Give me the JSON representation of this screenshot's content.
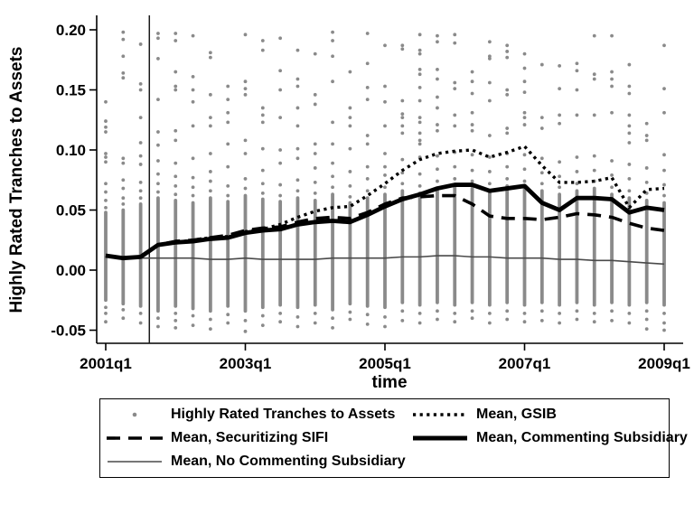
{
  "figure": {
    "background": "#ffffff",
    "scatter_color": "#8a8a8a",
    "line_color": "#000000",
    "thin_line_color": "#4a4a4a"
  },
  "legend": {
    "items": [
      {
        "label": "Highly Rated Tranches to Assets",
        "marker": "dot"
      },
      {
        "label": "Mean, GSIB",
        "marker": "dotted"
      },
      {
        "label": "Mean, Securitizing SIFI",
        "marker": "dashed"
      },
      {
        "label": "Mean, Commenting Subsidiary",
        "marker": "thick"
      },
      {
        "label": "Mean, No Commenting Subsidiary",
        "marker": "thin"
      }
    ]
  },
  "chart_data": {
    "type": "scatter",
    "title": "",
    "xlabel": "time",
    "ylabel": "Highly Rated Tranches to Assets",
    "grid": false,
    "legend_position": "bottom",
    "ylim": [
      -0.055,
      0.205
    ],
    "y_tick_values": [
      0.2,
      0.15,
      0.1,
      0.05,
      0.0,
      -0.05
    ],
    "y_ticks": [
      "0.20",
      "0.15",
      "0.10",
      "0.05",
      "0.00",
      "-0.05"
    ],
    "x_ticks": [
      "2001q1",
      "2003q1",
      "2005q1",
      "2007q1",
      "2009q1"
    ],
    "x_tick_quarter_index": [
      0,
      8,
      16,
      24,
      32
    ],
    "event_line": {
      "quarter_index": 2.5,
      "description": "vertical reference line between 2001q3 and 2001q4"
    },
    "quarters": [
      "2001q1",
      "2001q2",
      "2001q3",
      "2001q4",
      "2002q1",
      "2002q2",
      "2002q3",
      "2002q4",
      "2003q1",
      "2003q2",
      "2003q3",
      "2003q4",
      "2004q1",
      "2004q2",
      "2004q3",
      "2004q4",
      "2005q1",
      "2005q2",
      "2005q3",
      "2005q4",
      "2006q1",
      "2006q2",
      "2006q3",
      "2006q4",
      "2007q1",
      "2007q2",
      "2007q3",
      "2007q4",
      "2008q1",
      "2008q2",
      "2008q3",
      "2008q4",
      "2009q1"
    ],
    "series": [
      {
        "name": "Mean, GSIB",
        "style": "dotted",
        "values": [
          0.012,
          0.01,
          0.011,
          0.021,
          0.023,
          0.025,
          0.027,
          0.028,
          0.032,
          0.034,
          0.038,
          0.044,
          0.049,
          0.052,
          0.053,
          0.062,
          0.072,
          0.083,
          0.092,
          0.097,
          0.099,
          0.1,
          0.094,
          0.098,
          0.103,
          0.087,
          0.073,
          0.073,
          0.074,
          0.077,
          0.052,
          0.067,
          0.068
        ]
      },
      {
        "name": "Mean, Securitizing SIFI",
        "style": "dashed",
        "values": [
          0.012,
          0.01,
          0.011,
          0.021,
          0.024,
          0.025,
          0.027,
          0.029,
          0.033,
          0.035,
          0.036,
          0.04,
          0.043,
          0.044,
          0.043,
          0.048,
          0.055,
          0.06,
          0.061,
          0.062,
          0.062,
          0.055,
          0.045,
          0.043,
          0.043,
          0.042,
          0.044,
          0.047,
          0.046,
          0.044,
          0.039,
          0.035,
          0.033
        ]
      },
      {
        "name": "Mean, No Commenting Subsidiary",
        "style": "thin",
        "values": [
          0.011,
          0.01,
          0.01,
          0.01,
          0.01,
          0.01,
          0.009,
          0.009,
          0.01,
          0.009,
          0.009,
          0.009,
          0.009,
          0.01,
          0.01,
          0.01,
          0.01,
          0.011,
          0.011,
          0.012,
          0.012,
          0.011,
          0.011,
          0.01,
          0.01,
          0.01,
          0.009,
          0.009,
          0.008,
          0.008,
          0.007,
          0.006,
          0.005
        ]
      },
      {
        "name": "Mean, Commenting Subsidiary",
        "style": "thick",
        "values": [
          0.012,
          0.01,
          0.011,
          0.021,
          0.023,
          0.024,
          0.026,
          0.027,
          0.031,
          0.033,
          0.034,
          0.038,
          0.04,
          0.041,
          0.04,
          0.046,
          0.053,
          0.059,
          0.063,
          0.068,
          0.071,
          0.071,
          0.066,
          0.068,
          0.07,
          0.056,
          0.05,
          0.06,
          0.06,
          0.059,
          0.048,
          0.052,
          0.05
        ]
      }
    ],
    "scatter": {
      "name": "Highly Rated Tranches to Assets",
      "note": "each column is a dense vertical cluster of firm-level observations; band = dense range, dots = individually visible points",
      "columns": [
        {
          "q": "2001q1",
          "band": [
            -0.025,
            0.048
          ],
          "dots": [
            -0.031,
            -0.036,
            -0.043,
            0.052,
            0.058,
            0.065,
            0.072,
            0.09,
            0.094,
            0.097,
            0.115,
            0.119,
            0.124,
            0.14
          ]
        },
        {
          "q": "2001q2",
          "band": [
            -0.028,
            0.05
          ],
          "dots": [
            -0.033,
            -0.04,
            0.055,
            0.06,
            0.068,
            0.075,
            0.089,
            0.093,
            0.16,
            0.164,
            0.178,
            0.192,
            0.198
          ]
        },
        {
          "q": "2001q3",
          "band": [
            -0.03,
            0.055
          ],
          "dots": [
            -0.036,
            -0.044,
            0.06,
            0.066,
            0.073,
            0.088,
            0.095,
            0.106,
            0.127,
            0.15,
            0.155,
            0.188
          ]
        },
        {
          "q": "2001q4",
          "band": [
            -0.034,
            0.06
          ],
          "dots": [
            -0.04,
            -0.047,
            0.065,
            0.072,
            0.08,
            0.091,
            0.104,
            0.115,
            0.142,
            0.176,
            0.193,
            0.197
          ]
        },
        {
          "q": "2002q1",
          "band": [
            -0.03,
            0.058
          ],
          "dots": [
            -0.036,
            -0.042,
            -0.048,
            0.063,
            0.07,
            0.078,
            0.089,
            0.108,
            0.116,
            0.15,
            0.153,
            0.165,
            0.191,
            0.197
          ]
        },
        {
          "q": "2002q2",
          "band": [
            -0.032,
            0.056
          ],
          "dots": [
            -0.038,
            -0.046,
            0.062,
            0.069,
            0.077,
            0.093,
            0.12,
            0.14,
            0.15,
            0.161,
            0.195
          ]
        },
        {
          "q": "2002q3",
          "band": [
            -0.034,
            0.06
          ],
          "dots": [
            -0.041,
            -0.049,
            0.066,
            0.074,
            0.082,
            0.097,
            0.12,
            0.127,
            0.146,
            0.177,
            0.181
          ]
        },
        {
          "q": "2002q4",
          "band": [
            -0.03,
            0.057
          ],
          "dots": [
            -0.037,
            -0.044,
            0.062,
            0.07,
            0.086,
            0.105,
            0.123,
            0.131,
            0.142,
            0.153
          ]
        },
        {
          "q": "2003q1",
          "band": [
            -0.034,
            0.062
          ],
          "dots": [
            -0.042,
            -0.051,
            0.068,
            0.076,
            0.097,
            0.108,
            0.146,
            0.151,
            0.157,
            0.196
          ]
        },
        {
          "q": "2003q2",
          "band": [
            -0.031,
            0.059
          ],
          "dots": [
            -0.038,
            -0.046,
            0.064,
            0.072,
            0.083,
            0.101,
            0.123,
            0.129,
            0.135,
            0.183,
            0.191
          ]
        },
        {
          "q": "2003q3",
          "band": [
            -0.029,
            0.057
          ],
          "dots": [
            -0.036,
            -0.043,
            0.062,
            0.071,
            0.089,
            0.1,
            0.127,
            0.15,
            0.166,
            0.193
          ]
        },
        {
          "q": "2003q4",
          "band": [
            -0.031,
            0.06
          ],
          "dots": [
            -0.039,
            -0.047,
            0.066,
            0.075,
            0.093,
            0.101,
            0.12,
            0.135,
            0.153,
            0.159,
            0.183
          ]
        },
        {
          "q": "2004q1",
          "band": [
            -0.029,
            0.058
          ],
          "dots": [
            -0.036,
            -0.044,
            0.064,
            0.073,
            0.085,
            0.097,
            0.105,
            0.138,
            0.146,
            0.18
          ]
        },
        {
          "q": "2004q2",
          "band": [
            -0.033,
            0.063
          ],
          "dots": [
            -0.04,
            -0.048,
            0.069,
            0.078,
            0.089,
            0.105,
            0.123,
            0.157,
            0.178,
            0.191,
            0.198
          ]
        },
        {
          "q": "2004q3",
          "band": [
            -0.028,
            0.056
          ],
          "dots": [
            -0.035,
            -0.041,
            0.061,
            0.07,
            0.082,
            0.101,
            0.12,
            0.127,
            0.135,
            0.165
          ]
        },
        {
          "q": "2004q4",
          "band": [
            -0.03,
            0.06
          ],
          "dots": [
            -0.037,
            -0.045,
            0.066,
            0.076,
            0.086,
            0.105,
            0.112,
            0.142,
            0.152,
            0.172,
            0.197
          ]
        },
        {
          "q": "2005q1",
          "band": [
            -0.031,
            0.063
          ],
          "dots": [
            -0.039,
            -0.047,
            0.069,
            0.079,
            0.086,
            0.097,
            0.12,
            0.14,
            0.153,
            0.187
          ]
        },
        {
          "q": "2005q2",
          "band": [
            -0.027,
            0.066
          ],
          "dots": [
            -0.034,
            -0.042,
            0.072,
            0.081,
            0.092,
            0.114,
            0.12,
            0.127,
            0.13,
            0.141,
            0.184,
            0.187
          ]
        },
        {
          "q": "2005q3",
          "band": [
            -0.029,
            0.064
          ],
          "dots": [
            -0.036,
            -0.044,
            0.07,
            0.08,
            0.094,
            0.105,
            0.108,
            0.114,
            0.123,
            0.127,
            0.141,
            0.152,
            0.163,
            0.167,
            0.18,
            0.183,
            0.196
          ]
        },
        {
          "q": "2005q4",
          "band": [
            -0.027,
            0.068
          ],
          "dots": [
            -0.034,
            -0.041,
            0.074,
            0.084,
            0.095,
            0.116,
            0.121,
            0.135,
            0.144,
            0.159,
            0.167,
            0.19,
            0.195
          ]
        },
        {
          "q": "2006q1",
          "band": [
            -0.029,
            0.07
          ],
          "dots": [
            -0.036,
            -0.043,
            0.076,
            0.086,
            0.098,
            0.12,
            0.129,
            0.151,
            0.156,
            0.189,
            0.196
          ]
        },
        {
          "q": "2006q2",
          "band": [
            -0.027,
            0.068
          ],
          "dots": [
            -0.034,
            -0.04,
            0.074,
            0.083,
            0.096,
            0.116,
            0.121,
            0.131,
            0.147,
            0.157,
            0.165
          ]
        },
        {
          "q": "2006q3",
          "band": [
            -0.029,
            0.066
          ],
          "dots": [
            -0.036,
            -0.044,
            0.072,
            0.082,
            0.094,
            0.112,
            0.141,
            0.156,
            0.176,
            0.178,
            0.19
          ]
        },
        {
          "q": "2006q4",
          "band": [
            -0.027,
            0.07
          ],
          "dots": [
            -0.034,
            -0.041,
            0.076,
            0.086,
            0.097,
            0.114,
            0.118,
            0.146,
            0.15,
            0.177,
            0.182,
            0.187
          ]
        },
        {
          "q": "2007q1",
          "band": [
            -0.029,
            0.068
          ],
          "dots": [
            -0.036,
            -0.043,
            0.074,
            0.084,
            0.096,
            0.121,
            0.127,
            0.131,
            0.148,
            0.157,
            0.168,
            0.18
          ]
        },
        {
          "q": "2007q2",
          "band": [
            -0.027,
            0.066
          ],
          "dots": [
            -0.034,
            -0.042,
            0.072,
            0.081,
            0.093,
            0.118,
            0.127,
            0.171
          ]
        },
        {
          "q": "2007q3",
          "band": [
            -0.029,
            0.063
          ],
          "dots": [
            -0.036,
            -0.044,
            0.069,
            0.078,
            0.09,
            0.122,
            0.129,
            0.151,
            0.17
          ]
        },
        {
          "q": "2007q4",
          "band": [
            -0.027,
            0.066
          ],
          "dots": [
            -0.034,
            -0.041,
            0.072,
            0.082,
            0.094,
            0.129,
            0.15,
            0.166,
            0.172
          ]
        },
        {
          "q": "2008q1",
          "band": [
            -0.029,
            0.068
          ],
          "dots": [
            -0.036,
            -0.043,
            0.074,
            0.083,
            0.095,
            0.129,
            0.159,
            0.163,
            0.195
          ]
        },
        {
          "q": "2008q2",
          "band": [
            -0.027,
            0.063
          ],
          "dots": [
            -0.034,
            -0.042,
            0.069,
            0.079,
            0.091,
            0.131,
            0.153,
            0.159,
            0.165,
            0.195
          ]
        },
        {
          "q": "2008q3",
          "band": [
            -0.029,
            0.06
          ],
          "dots": [
            -0.036,
            -0.044,
            0.066,
            0.076,
            0.088,
            0.106,
            0.114,
            0.12,
            0.129,
            0.147,
            0.153,
            0.171
          ]
        },
        {
          "q": "2008q4",
          "band": [
            -0.027,
            0.058
          ],
          "dots": [
            -0.034,
            -0.041,
            -0.049,
            0.064,
            0.073,
            0.085,
            0.108,
            0.112,
            0.122
          ]
        },
        {
          "q": "2009q1",
          "band": [
            -0.029,
            0.056
          ],
          "dots": [
            -0.036,
            -0.044,
            -0.05,
            0.062,
            0.071,
            0.083,
            0.096,
            0.131,
            0.151,
            0.187
          ]
        }
      ]
    }
  }
}
